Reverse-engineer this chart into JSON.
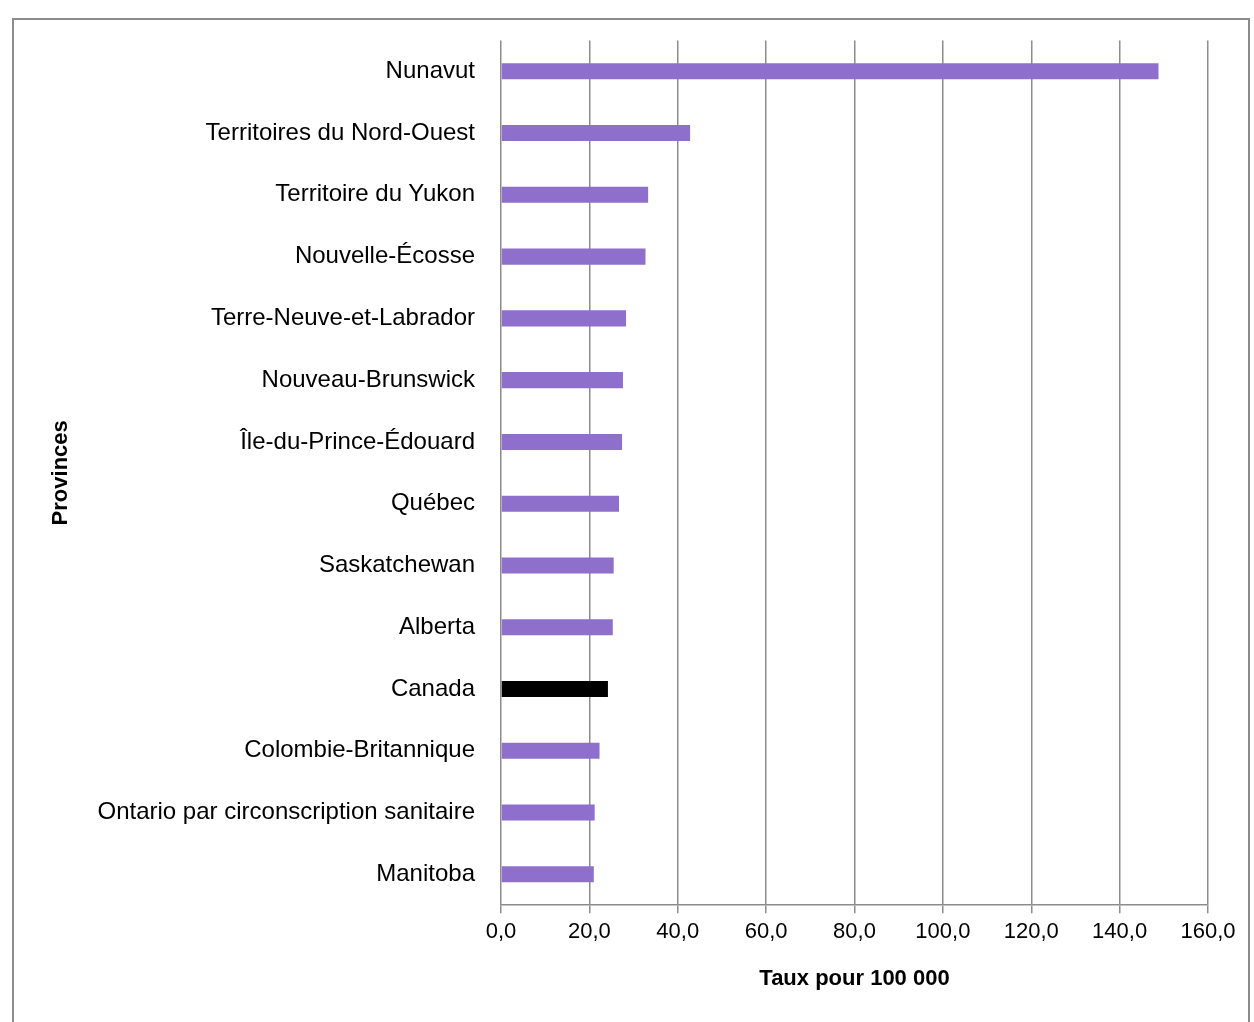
{
  "chart_data": {
    "type": "bar",
    "orientation": "horizontal",
    "xlabel": "Taux pour 100 000",
    "ylabel": "Provinces",
    "categories": [
      "Nunavut",
      "Territoires du Nord-Ouest",
      "Territoire du Yukon",
      "Nouvelle-Écosse",
      "Terre-Neuve-et-Labrador",
      "Nouveau-Brunswick",
      "Île-du-Prince-Édouard",
      "Québec",
      "Saskatchewan",
      "Alberta",
      "Canada",
      "Colombie-Britannique",
      "Ontario par circonscription sanitaire",
      "Manitoba"
    ],
    "values": [
      148.8,
      42.8,
      33.3,
      32.7,
      28.3,
      27.6,
      27.4,
      26.7,
      25.5,
      25.3,
      24.2,
      22.3,
      21.2,
      21.0
    ],
    "colors": [
      "#8f6fcc",
      "#8f6fcc",
      "#8f6fcc",
      "#8f6fcc",
      "#8f6fcc",
      "#8f6fcc",
      "#8f6fcc",
      "#8f6fcc",
      "#8f6fcc",
      "#8f6fcc",
      "#000000",
      "#8f6fcc",
      "#8f6fcc",
      "#8f6fcc"
    ],
    "xlim": [
      0,
      160
    ],
    "xticks": [
      {
        "value": 0,
        "label": "0,0"
      },
      {
        "value": 20,
        "label": "20,0"
      },
      {
        "value": 40,
        "label": "40,0"
      },
      {
        "value": 60,
        "label": "60,0"
      },
      {
        "value": 80,
        "label": "80,0"
      },
      {
        "value": 100,
        "label": "100,0"
      },
      {
        "value": 120,
        "label": "120,0"
      },
      {
        "value": 140,
        "label": "140,0"
      },
      {
        "value": 160,
        "label": "160,0"
      }
    ],
    "grid": "x"
  }
}
